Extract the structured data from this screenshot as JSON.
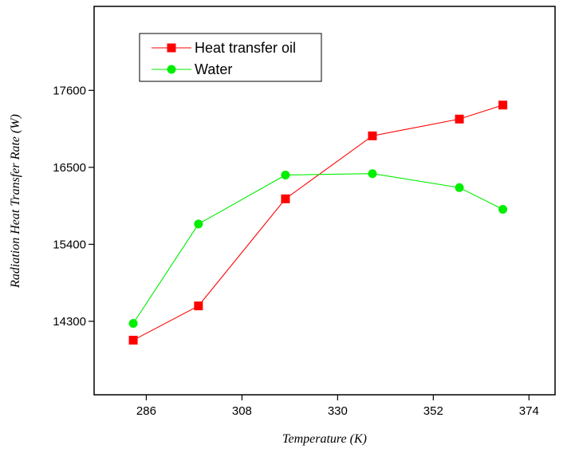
{
  "chart_data": {
    "type": "line",
    "title": "",
    "xlabel": "Temperature (K)",
    "ylabel": "Radiation Heat Transfer Rate (W)",
    "xlim": [
      274,
      380
    ],
    "ylim": [
      13250,
      18800
    ],
    "x_ticks": [
      286,
      308,
      330,
      352,
      374
    ],
    "y_ticks": [
      14300,
      15400,
      16500,
      17600
    ],
    "grid": false,
    "legend_position": "top-left",
    "series": [
      {
        "name": "Heat transfer oil",
        "color": "#ff0000",
        "marker": "square",
        "x": [
          283,
          298,
          318,
          338,
          358,
          368
        ],
        "y": [
          14030,
          14520,
          16050,
          16950,
          17190,
          17390
        ]
      },
      {
        "name": "Water",
        "color": "#00ee00",
        "marker": "circle",
        "x": [
          283,
          298,
          318,
          338,
          358,
          368
        ],
        "y": [
          14270,
          15690,
          16390,
          16410,
          16210,
          15900
        ]
      }
    ]
  }
}
